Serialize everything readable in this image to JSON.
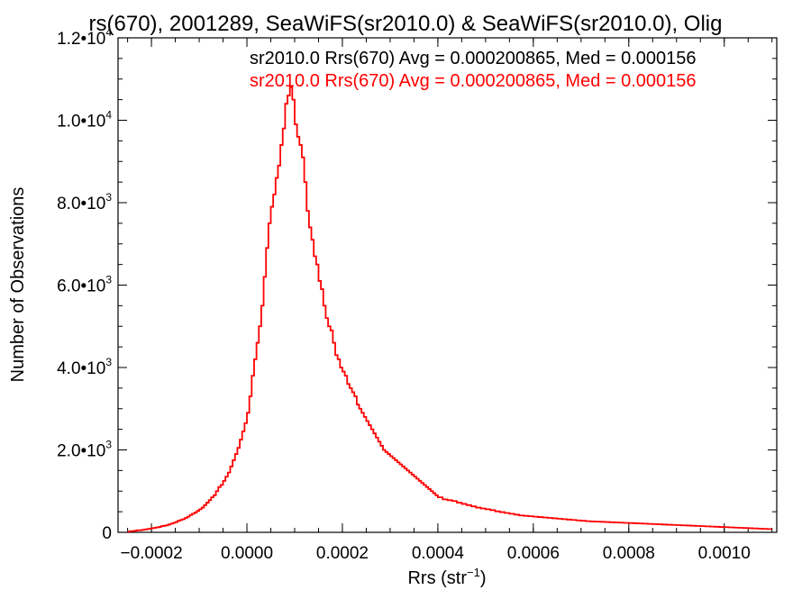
{
  "chart_data": {
    "type": "histogram",
    "title": "rs(670), 2001289, SeaWiFS(sr2010.0) & SeaWiFS(sr2010.0), Olig",
    "xlabel_main": "Rrs (str",
    "xlabel_sup": "−1",
    "xlabel_tail": ")",
    "ylabel": "Number of Observations",
    "xlim": [
      -0.00027,
      0.00111
    ],
    "ylim": [
      0,
      12000
    ],
    "x_ticks": [
      {
        "value": -0.0002,
        "label": "−0.0002"
      },
      {
        "value": 0.0,
        "label": "0.0000"
      },
      {
        "value": 0.0002,
        "label": "0.0002"
      },
      {
        "value": 0.0004,
        "label": "0.0004"
      },
      {
        "value": 0.0006,
        "label": "0.0006"
      },
      {
        "value": 0.0008,
        "label": "0.0008"
      },
      {
        "value": 0.001,
        "label": "0.0010"
      }
    ],
    "y_ticks": [
      {
        "value": 0,
        "mant": "0",
        "exp": ""
      },
      {
        "value": 2000,
        "mant": "2.0•10",
        "exp": "3"
      },
      {
        "value": 4000,
        "mant": "4.0•10",
        "exp": "3"
      },
      {
        "value": 6000,
        "mant": "6.0•10",
        "exp": "3"
      },
      {
        "value": 8000,
        "mant": "8.0•10",
        "exp": "3"
      },
      {
        "value": 10000,
        "mant": "1.0•10",
        "exp": "4"
      },
      {
        "value": 12000,
        "mant": "1.2•10",
        "exp": "4"
      }
    ],
    "annotations": [
      {
        "text": "sr2010.0 Rrs(670) Avg = 0.000200865, Med = 0.000156",
        "color": "#000000"
      },
      {
        "text": "sr2010.0 Rrs(670) Avg = 0.000200865, Med = 0.000156",
        "color": "#ff0000"
      }
    ],
    "series": [
      {
        "color": "#ff0000",
        "bin_width": 5e-06,
        "x": [
          -0.00025,
          -0.000245,
          -0.00024,
          -0.000235,
          -0.00023,
          -0.000225,
          -0.00022,
          -0.000215,
          -0.00021,
          -0.000205,
          -0.0002,
          -0.000195,
          -0.00019,
          -0.000185,
          -0.00018,
          -0.000175,
          -0.00017,
          -0.000165,
          -0.00016,
          -0.000155,
          -0.00015,
          -0.000145,
          -0.00014,
          -0.000135,
          -0.00013,
          -0.000125,
          -0.00012,
          -0.000115,
          -0.00011,
          -0.000105,
          -0.0001,
          -9.5e-05,
          -9e-05,
          -8.5e-05,
          -8e-05,
          -7.5e-05,
          -7e-05,
          -6.5e-05,
          -6e-05,
          -5.5e-05,
          -5e-05,
          -4.5e-05,
          -4e-05,
          -3.5e-05,
          -3e-05,
          -2.5e-05,
          -2e-05,
          -1.5e-05,
          -1e-05,
          -5e-06,
          0,
          5e-06,
          1e-05,
          1.5e-05,
          2e-05,
          2.5e-05,
          3e-05,
          3.5e-05,
          4e-05,
          4.5e-05,
          5e-05,
          5.5e-05,
          6e-05,
          6.5e-05,
          7e-05,
          7.5e-05,
          8e-05,
          8.5e-05,
          9e-05,
          9.5e-05,
          0.0001,
          0.000105,
          0.00011,
          0.000115,
          0.00012,
          0.000125,
          0.00013,
          0.000135,
          0.00014,
          0.000145,
          0.00015,
          0.000155,
          0.00016,
          0.000165,
          0.00017,
          0.000175,
          0.00018,
          0.000185,
          0.00019,
          0.000195,
          0.0002,
          0.000205,
          0.00021,
          0.000215,
          0.00022,
          0.000225,
          0.00023,
          0.000235,
          0.00024,
          0.000245,
          0.00025,
          0.000255,
          0.00026,
          0.000265,
          0.00027,
          0.000275,
          0.00028,
          0.000285,
          0.00029,
          0.000295,
          0.0003,
          0.000305,
          0.00031,
          0.000315,
          0.00032,
          0.000325,
          0.00033,
          0.000335,
          0.00034,
          0.000345,
          0.00035,
          0.000355,
          0.00036,
          0.000365,
          0.00037,
          0.000375,
          0.00038,
          0.000385,
          0.00039,
          0.000395,
          0.0004,
          0.00041,
          0.00042,
          0.00043,
          0.00044,
          0.00045,
          0.00046,
          0.00047,
          0.00048,
          0.00049,
          0.0005,
          0.00051,
          0.00052,
          0.00053,
          0.00054,
          0.00055,
          0.00056,
          0.00057,
          0.00058,
          0.00059,
          0.0006,
          0.00061,
          0.00062,
          0.00063,
          0.00064,
          0.00065,
          0.00066,
          0.00067,
          0.00068,
          0.00069,
          0.0007,
          0.00071,
          0.00072,
          0.00073,
          0.00074,
          0.00075,
          0.00076,
          0.00077,
          0.00078,
          0.00079,
          0.0008,
          0.00081,
          0.00082,
          0.00083,
          0.00084,
          0.00085,
          0.00086,
          0.00087,
          0.00088,
          0.00089,
          0.0009,
          0.00091,
          0.00092,
          0.00093,
          0.00094,
          0.00095,
          0.00096,
          0.00097,
          0.00098,
          0.00099,
          0.001,
          0.00101,
          0.00102,
          0.00103,
          0.00104,
          0.00105,
          0.00106,
          0.00107,
          0.00108,
          0.00109,
          0.0011
        ],
        "counts": [
          20,
          30,
          30,
          40,
          50,
          50,
          60,
          70,
          80,
          90,
          100,
          110,
          120,
          130,
          150,
          160,
          170,
          190,
          210,
          230,
          250,
          280,
          300,
          320,
          350,
          380,
          420,
          450,
          480,
          520,
          560,
          600,
          660,
          720,
          780,
          850,
          900,
          1000,
          1100,
          1150,
          1250,
          1350,
          1450,
          1600,
          1750,
          1900,
          2050,
          2250,
          2450,
          2650,
          2900,
          3300,
          3800,
          4200,
          4600,
          5000,
          5500,
          6200,
          6900,
          7500,
          7900,
          8200,
          8600,
          8900,
          9400,
          9800,
          10400,
          10600,
          10800,
          10500,
          9900,
          9600,
          9400,
          9100,
          8500,
          7800,
          7400,
          7100,
          6700,
          6500,
          6100,
          5900,
          5500,
          5200,
          5000,
          4900,
          4600,
          4300,
          4200,
          4000,
          3900,
          3800,
          3600,
          3500,
          3400,
          3300,
          3100,
          3000,
          2900,
          2800,
          2700,
          2600,
          2500,
          2400,
          2300,
          2200,
          2100,
          2000,
          1950,
          1900,
          1850,
          1800,
          1750,
          1700,
          1650,
          1600,
          1550,
          1500,
          1450,
          1400,
          1350,
          1300,
          1250,
          1200,
          1150,
          1100,
          1050,
          1000,
          950,
          900,
          850,
          800,
          780,
          760,
          720,
          690,
          660,
          630,
          600,
          580,
          560,
          540,
          510,
          490,
          470,
          450,
          430,
          410,
          400,
          390,
          380,
          370,
          360,
          350,
          340,
          330,
          320,
          310,
          300,
          290,
          280,
          270,
          265,
          260,
          255,
          250,
          245,
          240,
          235,
          230,
          225,
          220,
          215,
          210,
          205,
          200,
          195,
          190,
          185,
          180,
          175,
          170,
          165,
          160,
          155,
          150,
          145,
          140,
          135,
          130,
          125,
          120,
          115,
          110,
          105,
          100,
          95,
          90,
          85,
          80
        ]
      }
    ]
  }
}
